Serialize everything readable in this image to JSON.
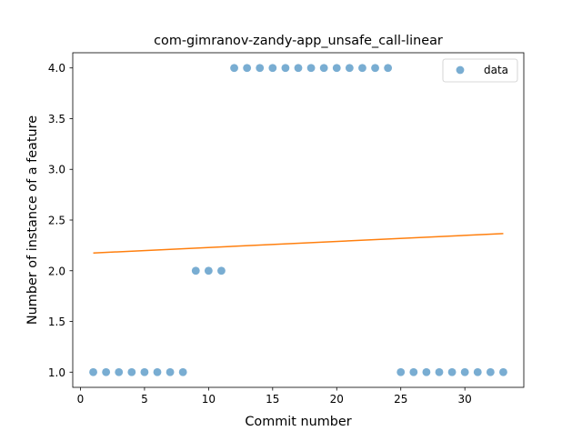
{
  "chart_data": {
    "type": "scatter",
    "title": "com-gimranov-zandy-app_unsafe_call-linear",
    "xlabel": "Commit number",
    "ylabel": "Number of instance of a feature",
    "xlim": [
      -0.6,
      34.6
    ],
    "ylim": [
      0.85,
      4.15
    ],
    "x_ticks": [
      0,
      5,
      10,
      15,
      20,
      25,
      30
    ],
    "x_tick_labels": [
      "0",
      "5",
      "10",
      "15",
      "20",
      "25",
      "30"
    ],
    "y_ticks": [
      1.0,
      1.5,
      2.0,
      2.5,
      3.0,
      3.5,
      4.0
    ],
    "y_tick_labels": [
      "1.0",
      "1.5",
      "2.0",
      "2.5",
      "3.0",
      "3.5",
      "4.0"
    ],
    "grid": false,
    "legend_position": "top-right",
    "series": [
      {
        "name": "data",
        "kind": "scatter",
        "color": "#1f77b4",
        "x": [
          1,
          2,
          3,
          4,
          5,
          6,
          7,
          8,
          9,
          10,
          11,
          12,
          13,
          14,
          15,
          16,
          17,
          18,
          19,
          20,
          21,
          22,
          23,
          24,
          25,
          26,
          27,
          28,
          29,
          30,
          31,
          32,
          33
        ],
        "y": [
          1,
          1,
          1,
          1,
          1,
          1,
          1,
          1,
          2,
          2,
          2,
          4,
          4,
          4,
          4,
          4,
          4,
          4,
          4,
          4,
          4,
          4,
          4,
          4,
          1,
          1,
          1,
          1,
          1,
          1,
          1,
          1,
          1
        ]
      },
      {
        "kind": "line",
        "color": "#ff7f0e",
        "x": [
          1,
          33
        ],
        "y": [
          2.175,
          2.367
        ]
      }
    ]
  }
}
